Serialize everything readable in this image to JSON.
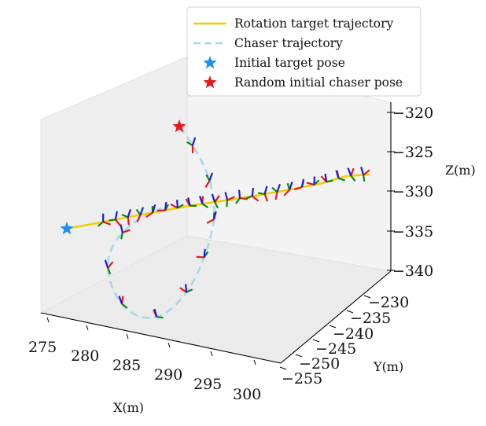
{
  "chart_data": {
    "type": "line",
    "projection": "3d",
    "xlabel": "X(m)",
    "ylabel": "Y(m)",
    "zlabel": "Z(m)",
    "xlim": [
      273,
      302
    ],
    "ylim": [
      -257,
      -227
    ],
    "zlim": [
      -341,
      -318
    ],
    "x_ticks": [
      "275",
      "280",
      "285",
      "290",
      "295",
      "300"
    ],
    "y_ticks": [
      "−230",
      "−235",
      "−240",
      "−245",
      "−250",
      "−255"
    ],
    "z_ticks": [
      "−320",
      "−325",
      "−330",
      "−335",
      "−340"
    ],
    "legend_position": "top-right",
    "grid": false,
    "legend": [
      {
        "label": "Rotation target trajectory",
        "style": "solid-line",
        "color": "#F5CE00"
      },
      {
        "label": "Chaser trajectory",
        "style": "dashed-line",
        "color": "#A9D8E6"
      },
      {
        "label": "Initial target pose",
        "style": "star",
        "color": "#1E90F0"
      },
      {
        "label": "Random initial chaser pose",
        "style": "star",
        "color": "#E61919"
      }
    ],
    "series": [
      {
        "name": "Rotation target trajectory",
        "color": "#F5CE00",
        "points": [
          [
            275.5,
            -244,
            -331.3
          ],
          [
            280,
            -244,
            -330.8
          ],
          [
            284,
            -244,
            -330.3
          ],
          [
            288,
            -244,
            -329.8
          ],
          [
            292,
            -244,
            -329.3
          ],
          [
            296,
            -244,
            -328.8
          ],
          [
            299,
            -244,
            -328.3
          ],
          [
            301,
            -244,
            -327.8
          ]
        ]
      },
      {
        "name": "Chaser trajectory",
        "color": "#A9D8E6",
        "points": [
          [
            283.5,
            -232,
            -324.0
          ],
          [
            285,
            -234,
            -325.3
          ],
          [
            287,
            -236,
            -327.3
          ],
          [
            289,
            -238,
            -329.3
          ],
          [
            290.5,
            -240,
            -331.6
          ],
          [
            291,
            -242,
            -333.6
          ],
          [
            290.8,
            -244,
            -335.4
          ],
          [
            290,
            -246,
            -336.9
          ],
          [
            288.5,
            -247.5,
            -337.8
          ],
          [
            286.5,
            -248.5,
            -338.0
          ],
          [
            284.5,
            -248.5,
            -337.5
          ],
          [
            283,
            -247.5,
            -336.6
          ],
          [
            282,
            -246,
            -335.4
          ],
          [
            282,
            -244.5,
            -334.1
          ],
          [
            283,
            -243,
            -332.9
          ],
          [
            284.5,
            -242,
            -332.0
          ],
          [
            286,
            -241.5,
            -331.3
          ],
          [
            288,
            -241,
            -330.7
          ]
        ]
      }
    ],
    "markers": [
      {
        "name": "Initial target pose",
        "color": "#1E90F0",
        "point": [
          275.5,
          -244,
          -331.3
        ]
      },
      {
        "name": "Random initial chaser pose",
        "color": "#E61919",
        "point": [
          283.5,
          -232,
          -324.0
        ]
      }
    ],
    "frames": [
      {
        "along": "target",
        "count": 22,
        "from": 0.12,
        "to": 0.98
      },
      {
        "along": "chaser",
        "count": 9,
        "from": 0.06,
        "to": 0.88
      }
    ]
  }
}
